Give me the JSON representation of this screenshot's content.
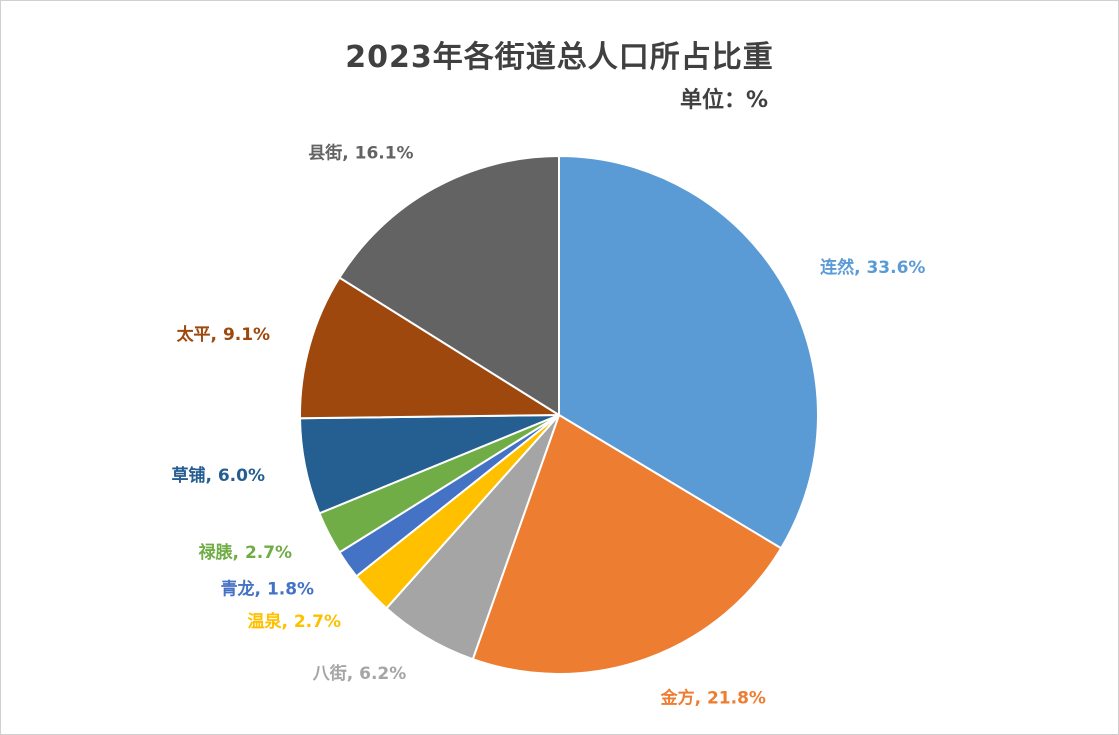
{
  "chart_data": {
    "type": "pie",
    "title": "2023年各街道总人口所占比重",
    "subtitle": "单位：%",
    "slices": [
      {
        "name": "连然",
        "value": 33.6,
        "label": "连然, 33.6%",
        "color": "#5b9bd5"
      },
      {
        "name": "金方",
        "value": 21.8,
        "label": "金方, 21.8%",
        "color": "#ed7d31"
      },
      {
        "name": "八街",
        "value": 6.2,
        "label": "八街, 6.2%",
        "color": "#a5a5a5"
      },
      {
        "name": "温泉",
        "value": 2.7,
        "label": "温泉, 2.7%",
        "color": "#ffc000"
      },
      {
        "name": "青龙",
        "value": 1.8,
        "label": "青龙, 1.8%",
        "color": "#4472c4"
      },
      {
        "name": "禄脿",
        "value": 2.7,
        "label": "禄脿, 2.7%",
        "color": "#70ad47"
      },
      {
        "name": "草铺",
        "value": 6.0,
        "label": "草铺, 6.0%",
        "color": "#255e91"
      },
      {
        "name": "太平",
        "value": 9.1,
        "label": "太平, 9.1%",
        "color": "#9e480e"
      },
      {
        "name": "县街",
        "value": 16.1,
        "label": "县街, 16.1%",
        "color": "#636363"
      }
    ],
    "legend": "none",
    "start_angle": "12 o'clock, clockwise"
  }
}
